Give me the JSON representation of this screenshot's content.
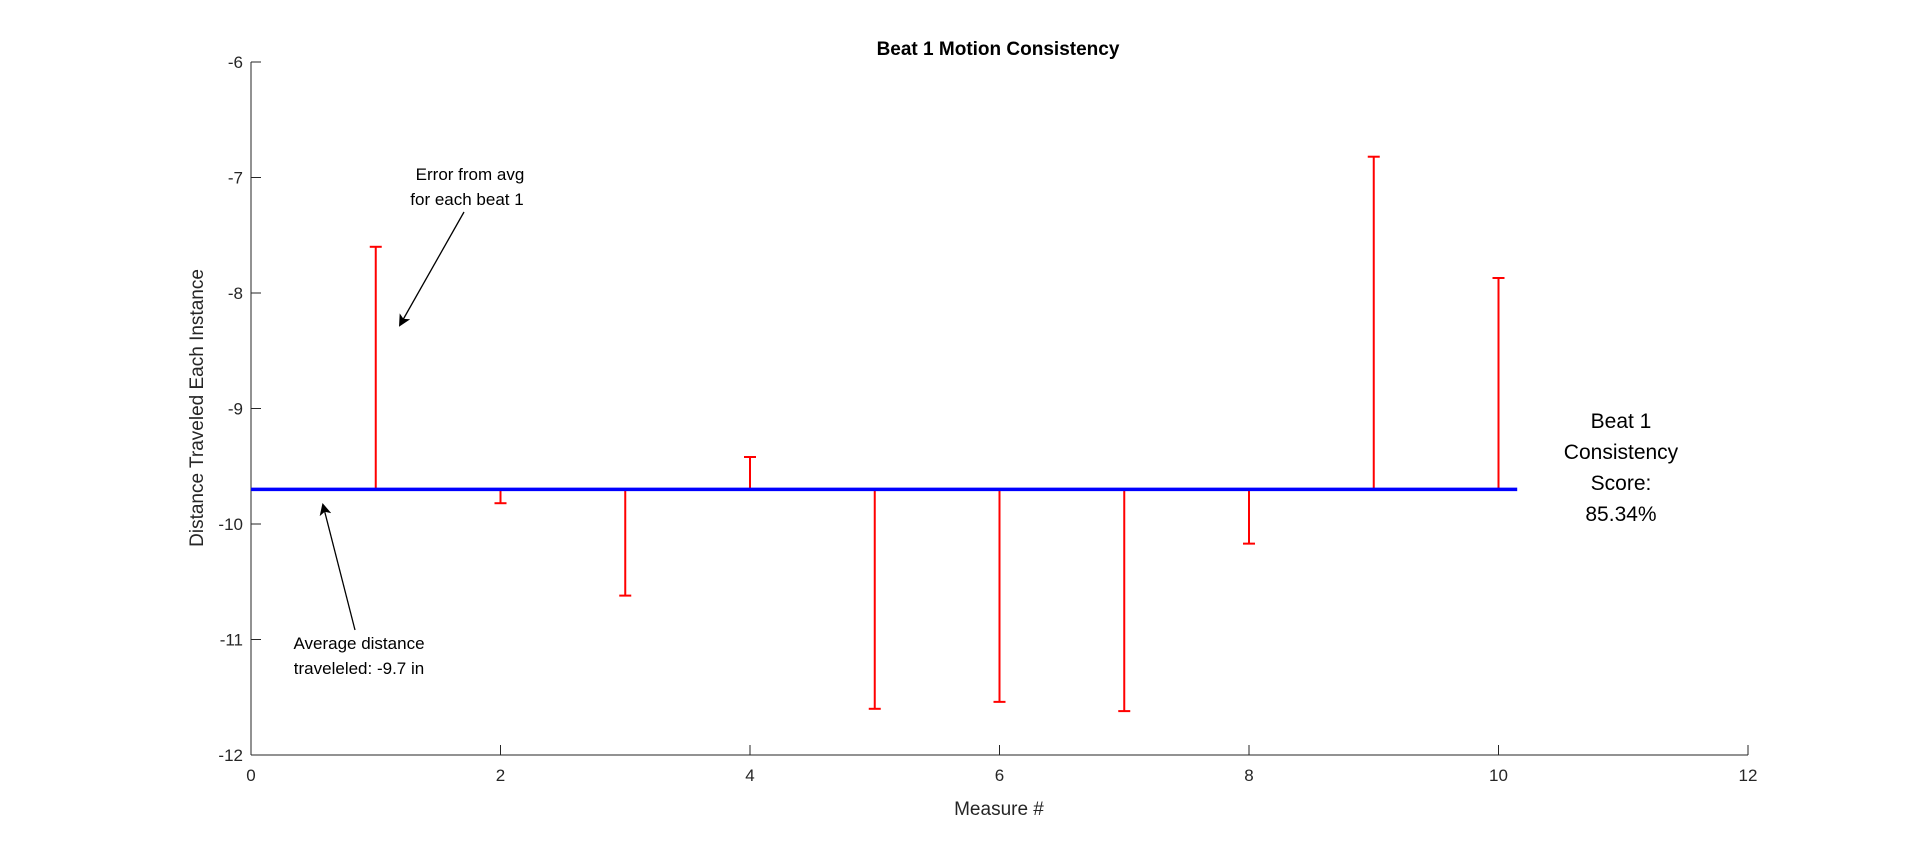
{
  "chart_data": {
    "type": "errorbar",
    "title": "Beat 1 Motion Consistency",
    "xlabel": "Measure #",
    "ylabel": "Distance Traveled Each Instance",
    "xlim": [
      0,
      12
    ],
    "ylim": [
      -12,
      -6
    ],
    "xticks": [
      0,
      2,
      4,
      6,
      8,
      10,
      12
    ],
    "yticks": [
      -12,
      -11,
      -10,
      -9,
      -8,
      -7,
      -6
    ],
    "grid": false,
    "average": -9.7,
    "average_line_x": [
      0,
      10.15
    ],
    "measures": [
      1,
      2,
      3,
      4,
      5,
      6,
      7,
      8,
      9,
      10
    ],
    "values": [
      -7.6,
      -9.82,
      -10.62,
      -9.42,
      -11.6,
      -11.54,
      -11.62,
      -10.17,
      -6.82,
      -7.87
    ],
    "colors": {
      "average": "#0000ff",
      "errorbar": "#ff0000",
      "axis": "#262626"
    },
    "annotations": {
      "error_note": [
        "Error from avg",
        "for each beat 1"
      ],
      "average_note": [
        "Average distance",
        "traveleled: -9.7 in"
      ],
      "score_text": [
        "Beat 1",
        "Consistency",
        "Score:",
        "85.34%"
      ]
    }
  }
}
